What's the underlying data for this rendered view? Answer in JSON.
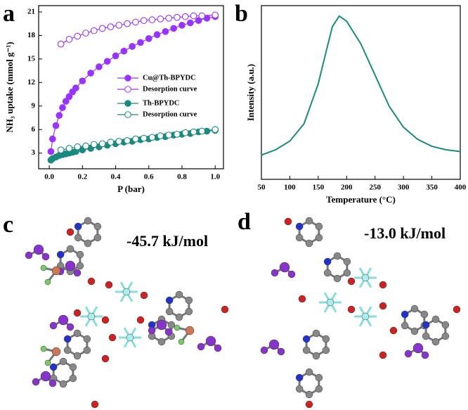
{
  "panels": {
    "a": "a",
    "b": "b",
    "c": "c",
    "d": "d",
    "energy_c": "-45.7 kJ/mol",
    "energy_d": "-13.0 kJ/mol"
  },
  "chart_data": [
    {
      "type": "line",
      "xlabel": "P (bar)",
      "ylabel": "NH₃ uptake (mmol g⁻¹)",
      "xlim": [
        -0.064,
        1.05
      ],
      "ylim": [
        1,
        21.8
      ],
      "xticks": [
        {
          "value": 0,
          "label": "0.0"
        },
        {
          "value": 0.2,
          "label": "0.2"
        },
        {
          "value": 0.4,
          "label": "0.4"
        },
        {
          "value": 0.6,
          "label": "0.6"
        },
        {
          "value": 0.8,
          "label": "0.8"
        },
        {
          "value": 1,
          "label": "1.0"
        }
      ],
      "yticks": [
        3,
        6,
        9,
        12,
        15,
        18,
        21
      ],
      "legend_position": "center left",
      "series": [
        {
          "name": "Cu@Th-BPYDC",
          "color": "#9933ff",
          "marker": "filled",
          "x": [
            0.01,
            0.02,
            0.04,
            0.06,
            0.08,
            0.1,
            0.12,
            0.14,
            0.16,
            0.2,
            0.25,
            0.3,
            0.35,
            0.4,
            0.45,
            0.5,
            0.55,
            0.6,
            0.65,
            0.7,
            0.75,
            0.8,
            0.85,
            0.9,
            0.95,
            1.0
          ],
          "values": [
            3.2,
            4.8,
            6.5,
            7.8,
            8.8,
            9.6,
            10.2,
            10.8,
            11.3,
            12.2,
            13.2,
            14.0,
            14.7,
            15.4,
            16.0,
            16.6,
            17.1,
            17.6,
            18.1,
            18.5,
            18.9,
            19.3,
            19.6,
            19.9,
            20.2,
            20.4
          ]
        },
        {
          "name": "Desorption curve",
          "color": "#9933ff",
          "marker": "open",
          "x": [
            0.07,
            0.12,
            0.17,
            0.22,
            0.27,
            0.32,
            0.37,
            0.42,
            0.47,
            0.52,
            0.57,
            0.62,
            0.67,
            0.72,
            0.77,
            0.82,
            0.87,
            0.92,
            1.0
          ],
          "values": [
            16.9,
            17.5,
            17.9,
            18.3,
            18.6,
            18.9,
            19.1,
            19.3,
            19.5,
            19.7,
            19.9,
            20.0,
            20.1,
            20.2,
            20.3,
            20.4,
            20.5,
            20.5,
            20.6
          ]
        },
        {
          "name": "Th-BPYDC",
          "color": "#1a8a80",
          "marker": "filled",
          "x": [
            0.01,
            0.02,
            0.04,
            0.06,
            0.08,
            0.1,
            0.12,
            0.14,
            0.16,
            0.2,
            0.25,
            0.3,
            0.35,
            0.4,
            0.45,
            0.5,
            0.55,
            0.6,
            0.65,
            0.7,
            0.75,
            0.8,
            0.85,
            0.9,
            0.95,
            1.0
          ],
          "values": [
            2.1,
            2.3,
            2.5,
            2.7,
            2.8,
            2.9,
            3.0,
            3.1,
            3.2,
            3.4,
            3.6,
            3.8,
            4.0,
            4.2,
            4.4,
            4.5,
            4.7,
            4.8,
            5.0,
            5.1,
            5.3,
            5.4,
            5.5,
            5.7,
            5.8,
            5.9
          ]
        },
        {
          "name": "Desorption curve",
          "color": "#1a8a80",
          "marker": "open",
          "x": [
            0.07,
            0.12,
            0.17,
            0.22,
            0.27,
            0.32,
            0.37,
            0.42,
            0.47,
            0.52,
            0.57,
            0.62,
            0.67,
            0.72,
            0.77,
            0.82,
            0.87,
            0.92,
            1.0
          ],
          "values": [
            3.4,
            3.6,
            3.8,
            3.9,
            4.1,
            4.2,
            4.4,
            4.5,
            4.6,
            4.8,
            4.9,
            5.0,
            5.2,
            5.3,
            5.4,
            5.6,
            5.7,
            5.8,
            6.0
          ]
        }
      ]
    },
    {
      "type": "line",
      "xlabel": "Temperature (°C)",
      "ylabel": "Intensity (a.u.)",
      "xlim": [
        50,
        400
      ],
      "ylim": [
        0,
        100
      ],
      "xticks": [
        50,
        100,
        150,
        200,
        250,
        300,
        350,
        400
      ],
      "series": [
        {
          "color": "#1a8a80",
          "x": [
            50,
            75,
            100,
            125,
            150,
            165,
            175,
            187,
            200,
            225,
            250,
            275,
            300,
            325,
            350,
            375,
            400
          ],
          "values": [
            14,
            17,
            22,
            32,
            55,
            75,
            88,
            94,
            91,
            78,
            60,
            42,
            30,
            23,
            19,
            17,
            16
          ]
        }
      ]
    }
  ]
}
